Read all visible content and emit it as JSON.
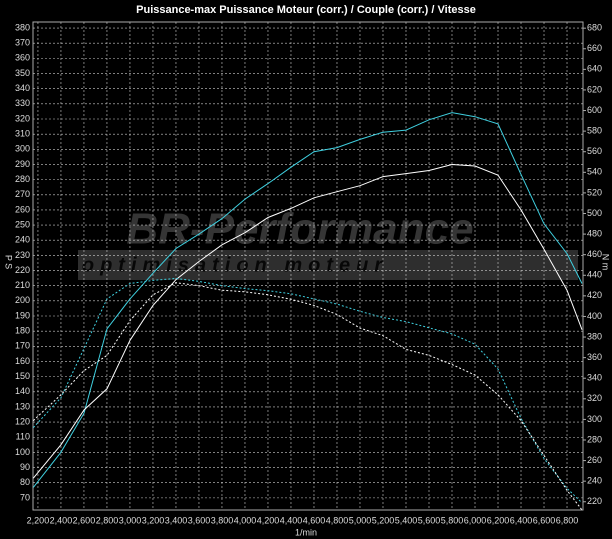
{
  "chart_data": {
    "type": "line",
    "title": "Puissance-max Puissance Moteur (corr.) / Couple (corr.) / Vitesse",
    "x_label": "1/min",
    "y_label": "P S",
    "y2_label": "N m",
    "watermark": {
      "brand": "BR-Performance",
      "tagline": "optimisation moteur"
    },
    "grid": true,
    "x": [
      2160,
      2400,
      2600,
      2800,
      3000,
      3200,
      3400,
      3600,
      3800,
      4000,
      4200,
      4400,
      4600,
      4800,
      5000,
      5200,
      5400,
      5600,
      5800,
      6000,
      6200,
      6400,
      6600,
      6800,
      6930
    ],
    "series": [
      {
        "color": "#3fd0e0",
        "dashed": false,
        "axis": "y2",
        "values": [
          234,
          268,
          306,
          388,
          417,
          442,
          466,
          480,
          495,
          514,
          529,
          545,
          560,
          564,
          572,
          579,
          581,
          591,
          598,
          594,
          587,
          538,
          490,
          461,
          432
        ]
      },
      {
        "color": "#ffffff",
        "dashed": false,
        "axis": "y",
        "values": [
          83,
          105,
          128,
          142,
          174,
          197,
          214,
          226,
          237,
          245,
          255,
          261,
          268,
          272,
          276,
          282,
          284,
          286,
          290,
          289,
          283,
          260,
          234,
          207,
          181
        ]
      },
      {
        "color": "#3fd0e0",
        "dashed": true,
        "axis": "y2",
        "values": [
          292,
          321,
          369,
          417,
          432,
          435,
          437,
          434,
          430,
          427,
          425,
          422,
          417,
          412,
          405,
          399,
          395,
          389,
          383,
          373,
          349,
          301,
          262,
          233,
          219
        ]
      },
      {
        "color": "#ffffff",
        "dashed": true,
        "axis": "y",
        "values": [
          121,
          138,
          154,
          164,
          187,
          204,
          212,
          210,
          207,
          206,
          204,
          201,
          197,
          191,
          182,
          177,
          168,
          164,
          158,
          151,
          138,
          121,
          98,
          75,
          62
        ]
      }
    ],
    "xlim": [
      2157,
      6939
    ],
    "xticks": [
      {
        "value": 2200,
        "label": "2,200"
      },
      {
        "value": 2400,
        "label": "2,400"
      },
      {
        "value": 2600,
        "label": "2,600"
      },
      {
        "value": 2800,
        "label": "2,800"
      },
      {
        "value": 3000,
        "label": "3,000"
      },
      {
        "value": 3200,
        "label": "3,200"
      },
      {
        "value": 3400,
        "label": "3,400"
      },
      {
        "value": 3600,
        "label": "3,600"
      },
      {
        "value": 3800,
        "label": "3,800"
      },
      {
        "value": 4000,
        "label": "4,000"
      },
      {
        "value": 4200,
        "label": "4,200"
      },
      {
        "value": 4400,
        "label": "4,400"
      },
      {
        "value": 4600,
        "label": "4,600"
      },
      {
        "value": 4800,
        "label": "4,800"
      },
      {
        "value": 5000,
        "label": "5,000"
      },
      {
        "value": 5200,
        "label": "5,200"
      },
      {
        "value": 5400,
        "label": "5,400"
      },
      {
        "value": 5600,
        "label": "5,600"
      },
      {
        "value": 5800,
        "label": "5,800"
      },
      {
        "value": 6000,
        "label": "6,000"
      },
      {
        "value": 6200,
        "label": "6,200"
      },
      {
        "value": 6400,
        "label": "6,400"
      },
      {
        "value": 6600,
        "label": "6,600"
      },
      {
        "value": 6800,
        "label": "6,800"
      }
    ],
    "ylim": [
      62,
      384
    ],
    "yticks": [
      70,
      80,
      90,
      100,
      110,
      120,
      130,
      140,
      150,
      160,
      170,
      180,
      190,
      200,
      210,
      220,
      230,
      240,
      250,
      260,
      270,
      280,
      290,
      300,
      310,
      320,
      330,
      340,
      350,
      360,
      370,
      380
    ],
    "y2lim": [
      212,
      686
    ],
    "y2ticks": [
      220,
      240,
      260,
      280,
      300,
      320,
      340,
      360,
      380,
      400,
      420,
      440,
      460,
      480,
      500,
      520,
      540,
      560,
      580,
      600,
      620,
      640,
      660,
      680
    ]
  }
}
